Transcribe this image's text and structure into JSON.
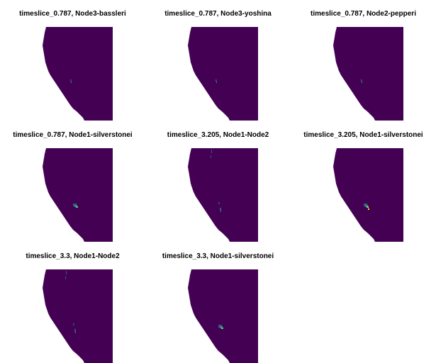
{
  "colors": {
    "land": "#440154",
    "background": "#ffffff",
    "low": "#3b528b",
    "mid": "#21918c",
    "high": "#5ec962",
    "peak": "#fde725"
  },
  "panels": [
    {
      "title": "timeslice_0.787, Node3-bassleri",
      "hotspot": "tiny-north",
      "intensity": "low"
    },
    {
      "title": "timeslice_0.787, Node3-yoshina",
      "hotspot": "tiny-north",
      "intensity": "low"
    },
    {
      "title": "timeslice_0.787, Node2-pepperi",
      "hotspot": "tiny-north",
      "intensity": "low"
    },
    {
      "title": "timeslice_0.787, Node1-silverstonei",
      "hotspot": "central",
      "intensity": "mid"
    },
    {
      "title": "timeslice_3.205, Node1-Node2",
      "hotspot": "scattered",
      "intensity": "low"
    },
    {
      "title": "timeslice_3.205, Node1-silverstonei",
      "hotspot": "central",
      "intensity": "high"
    },
    {
      "title": "timeslice_3.3, Node1-Node2",
      "hotspot": "scattered",
      "intensity": "low"
    },
    {
      "title": "timeslice_3.3, Node1-silverstonei",
      "hotspot": "central",
      "intensity": "mid"
    }
  ]
}
